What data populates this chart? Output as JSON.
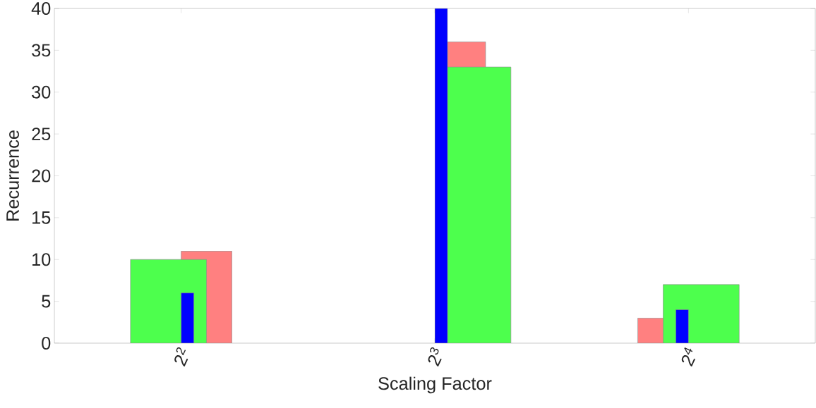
{
  "chart_data": {
    "type": "bar",
    "xlabel": "Scaling Factor",
    "ylabel": "Recurrence",
    "categories": [
      "2$^{2}$",
      "2$^{3}$",
      "2$^{4}$"
    ],
    "series": [
      {
        "color": "#ff8080",
        "values": [
          11,
          36,
          3
        ]
      },
      {
        "color": "#4dff4d",
        "values": [
          10,
          33,
          7
        ]
      },
      {
        "color": "#0000ff",
        "values": [
          6,
          40,
          4
        ]
      }
    ],
    "ylim": [
      0,
      40
    ],
    "yticks": [
      0,
      5,
      10,
      15,
      20,
      25,
      30,
      35,
      40
    ],
    "grid": false
  }
}
